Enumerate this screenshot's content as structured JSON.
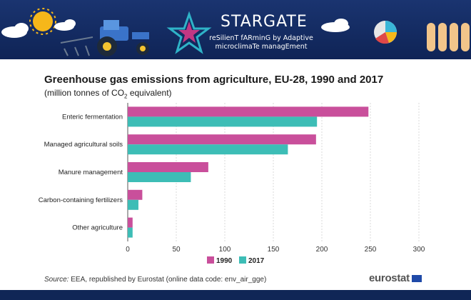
{
  "banner": {
    "title": "STARGATE",
    "subtitle_line1": "reSilienT fARminG by Adaptive",
    "subtitle_line2": "microclimaTe managEment"
  },
  "chart_data": {
    "type": "bar",
    "orientation": "horizontal",
    "title": "Greenhouse gas emissions from agriculture, EU-28, 1990 and 2017",
    "subtitle": "(million tonnes of CO2 equivalent)",
    "subtitle_prefix": "(million tonnes of CO",
    "subtitle_sub": "2",
    "subtitle_suffix": " equivalent)",
    "categories": [
      "Enteric fermentation",
      "Managed agricultural soils",
      "Manure management",
      "Carbon-containing fertilizers",
      "Other agriculture"
    ],
    "series": [
      {
        "name": "1990",
        "color": "#c94f9b",
        "values": [
          248,
          194,
          83,
          15,
          5
        ]
      },
      {
        "name": "2017",
        "color": "#3dbdb6",
        "values": [
          195,
          165,
          65,
          11,
          5
        ]
      }
    ],
    "xlim": [
      0,
      300
    ],
    "xticks": [
      "0",
      "50",
      "100",
      "150",
      "200",
      "250",
      "300"
    ],
    "grid": true,
    "legend_position": "bottom"
  },
  "footer": {
    "source_label": "Source:",
    "source_text": " EEA, republished by Eurostat (online data code: env_air_gge)",
    "logo": "eurostat"
  }
}
